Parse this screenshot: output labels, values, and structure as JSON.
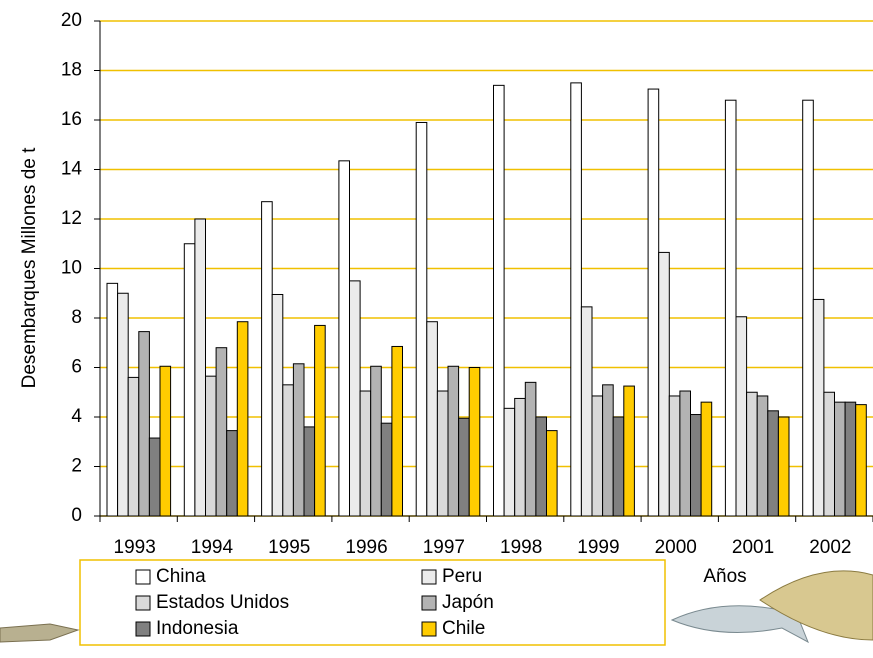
{
  "chart_data": {
    "type": "bar",
    "y_label": "Desembarques Millones de t",
    "x_label": "Años",
    "categories": [
      "1993",
      "1994",
      "1995",
      "1996",
      "1997",
      "1998",
      "1999",
      "2000",
      "2001",
      "2002"
    ],
    "series": [
      {
        "name": "China",
        "color": "#ffffff",
        "values": [
          9.4,
          11.0,
          12.7,
          14.35,
          15.9,
          17.4,
          17.5,
          17.25,
          16.8,
          16.8
        ]
      },
      {
        "name": "Peru",
        "color": "#ebebeb",
        "values": [
          9.0,
          12.0,
          8.95,
          9.5,
          7.85,
          4.35,
          8.45,
          10.65,
          8.05,
          8.75
        ]
      },
      {
        "name": "Estados Unidos",
        "color": "#d9d9d9",
        "values": [
          5.6,
          5.65,
          5.3,
          5.05,
          5.05,
          4.75,
          4.85,
          4.85,
          5.0,
          5.0
        ]
      },
      {
        "name": "Japón",
        "color": "#b3b3b3",
        "values": [
          7.45,
          6.8,
          6.15,
          6.05,
          6.05,
          5.4,
          5.3,
          5.05,
          4.85,
          4.6
        ]
      },
      {
        "name": "Indonesia",
        "color": "#808080",
        "values": [
          3.15,
          3.45,
          3.6,
          3.75,
          3.95,
          4.0,
          4.0,
          4.1,
          4.25,
          4.6
        ]
      },
      {
        "name": "Chile",
        "color": "#ffcc00",
        "values": [
          6.05,
          7.85,
          7.7,
          6.85,
          6.0,
          3.45,
          5.25,
          4.6,
          4.0,
          4.5
        ]
      }
    ],
    "ylim": [
      0,
      20
    ],
    "yticks": [
      0,
      2,
      4,
      6,
      8,
      10,
      12,
      14,
      16,
      18,
      20
    ],
    "grid": true,
    "grid_color": "#f0c000"
  }
}
